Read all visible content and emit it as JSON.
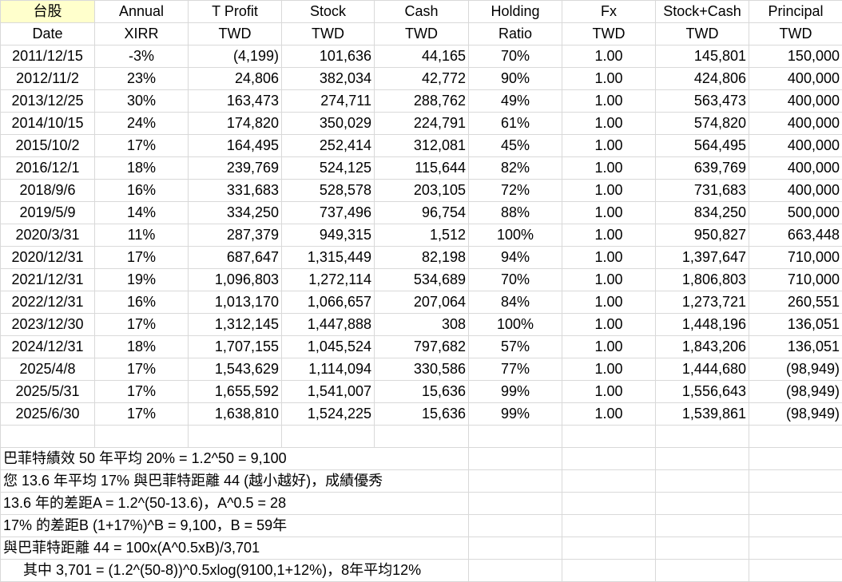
{
  "header1": [
    "台股",
    "Annual",
    "T Profit",
    "Stock",
    "Cash",
    "Holding",
    "Fx",
    "Stock+Cash",
    "Principal"
  ],
  "header2": [
    "Date",
    "XIRR",
    "TWD",
    "TWD",
    "TWD",
    "Ratio",
    "TWD",
    "TWD",
    "TWD"
  ],
  "rows": [
    [
      "2011/12/15",
      "-3%",
      "(4,199)",
      "101,636",
      "44,165",
      "70%",
      "1.00",
      "145,801",
      "150,000"
    ],
    [
      "2012/11/2",
      "23%",
      "24,806",
      "382,034",
      "42,772",
      "90%",
      "1.00",
      "424,806",
      "400,000"
    ],
    [
      "2013/12/25",
      "30%",
      "163,473",
      "274,711",
      "288,762",
      "49%",
      "1.00",
      "563,473",
      "400,000"
    ],
    [
      "2014/10/15",
      "24%",
      "174,820",
      "350,029",
      "224,791",
      "61%",
      "1.00",
      "574,820",
      "400,000"
    ],
    [
      "2015/10/2",
      "17%",
      "164,495",
      "252,414",
      "312,081",
      "45%",
      "1.00",
      "564,495",
      "400,000"
    ],
    [
      "2016/12/1",
      "18%",
      "239,769",
      "524,125",
      "115,644",
      "82%",
      "1.00",
      "639,769",
      "400,000"
    ],
    [
      "2018/9/6",
      "16%",
      "331,683",
      "528,578",
      "203,105",
      "72%",
      "1.00",
      "731,683",
      "400,000"
    ],
    [
      "2019/5/9",
      "14%",
      "334,250",
      "737,496",
      "96,754",
      "88%",
      "1.00",
      "834,250",
      "500,000"
    ],
    [
      "2020/3/31",
      "11%",
      "287,379",
      "949,315",
      "1,512",
      "100%",
      "1.00",
      "950,827",
      "663,448"
    ],
    [
      "2020/12/31",
      "17%",
      "687,647",
      "1,315,449",
      "82,198",
      "94%",
      "1.00",
      "1,397,647",
      "710,000"
    ],
    [
      "2021/12/31",
      "19%",
      "1,096,803",
      "1,272,114",
      "534,689",
      "70%",
      "1.00",
      "1,806,803",
      "710,000"
    ],
    [
      "2022/12/31",
      "16%",
      "1,013,170",
      "1,066,657",
      "207,064",
      "84%",
      "1.00",
      "1,273,721",
      "260,551"
    ],
    [
      "2023/12/30",
      "17%",
      "1,312,145",
      "1,447,888",
      "308",
      "100%",
      "1.00",
      "1,448,196",
      "136,051"
    ],
    [
      "2024/12/31",
      "18%",
      "1,707,155",
      "1,045,524",
      "797,682",
      "57%",
      "1.00",
      "1,843,206",
      "136,051"
    ],
    [
      "2025/4/8",
      "17%",
      "1,543,629",
      "1,114,094",
      "330,586",
      "77%",
      "1.00",
      "1,444,680",
      "(98,949)"
    ],
    [
      "2025/5/31",
      "17%",
      "1,655,592",
      "1,541,007",
      "15,636",
      "99%",
      "1.00",
      "1,556,643",
      "(98,949)"
    ],
    [
      "2025/6/30",
      "17%",
      "1,638,810",
      "1,524,225",
      "15,636",
      "99%",
      "1.00",
      "1,539,861",
      "(98,949)"
    ]
  ],
  "notes": [
    "巴菲特績效 50 年平均 20% = 1.2^50 = 9,100",
    "您 13.6 年平均 17% 與巴菲特距離 44 (越小越好)，成績優秀",
    "13.6 年的差距A = 1.2^(50-13.6)，A^0.5 = 28",
    "17% 的差距B (1+17%)^B = 9,100，B = 59年",
    "與巴菲特距離 44 = 100x(A^0.5xB)/3,701",
    "其中 3,701 = (1.2^(50-8))^0.5xlog(9100,1+12%)，8年平均12%"
  ],
  "highlight_color": "#ffffcc"
}
